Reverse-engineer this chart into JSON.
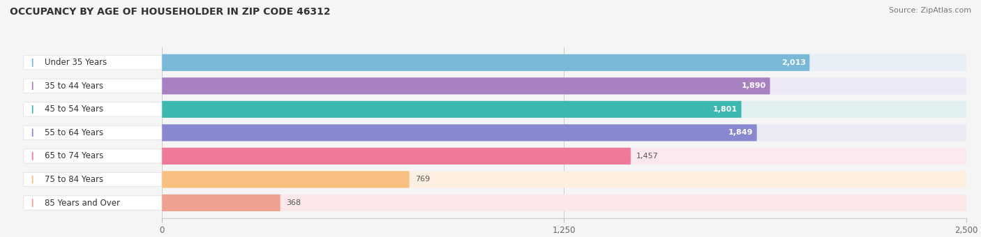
{
  "title": "OCCUPANCY BY AGE OF HOUSEHOLDER IN ZIP CODE 46312",
  "source": "Source: ZipAtlas.com",
  "categories": [
    "Under 35 Years",
    "35 to 44 Years",
    "45 to 54 Years",
    "55 to 64 Years",
    "65 to 74 Years",
    "75 to 84 Years",
    "85 Years and Over"
  ],
  "values": [
    2013,
    1890,
    1801,
    1849,
    1457,
    769,
    368
  ],
  "bar_colors": [
    "#7ab8d8",
    "#a882c0",
    "#3db8b0",
    "#8888d0",
    "#f07898",
    "#f8c080",
    "#f0a090"
  ],
  "bar_bg_colors": [
    "#e8eef5",
    "#ece8f5",
    "#e0f0f0",
    "#eaeaf5",
    "#fce8f0",
    "#fdf0e0",
    "#fce8e8"
  ],
  "dot_colors": [
    "#7ab8d8",
    "#a882c0",
    "#3db8b0",
    "#8888d0",
    "#f07898",
    "#f8c080",
    "#f0a090"
  ],
  "xlim": [
    0,
    2500
  ],
  "xticks": [
    0,
    1250,
    2500
  ],
  "background_color": "#f5f5f5",
  "bar_area_bg": "#ebebeb",
  "value_inside": [
    true,
    true,
    true,
    true,
    false,
    false,
    false
  ]
}
